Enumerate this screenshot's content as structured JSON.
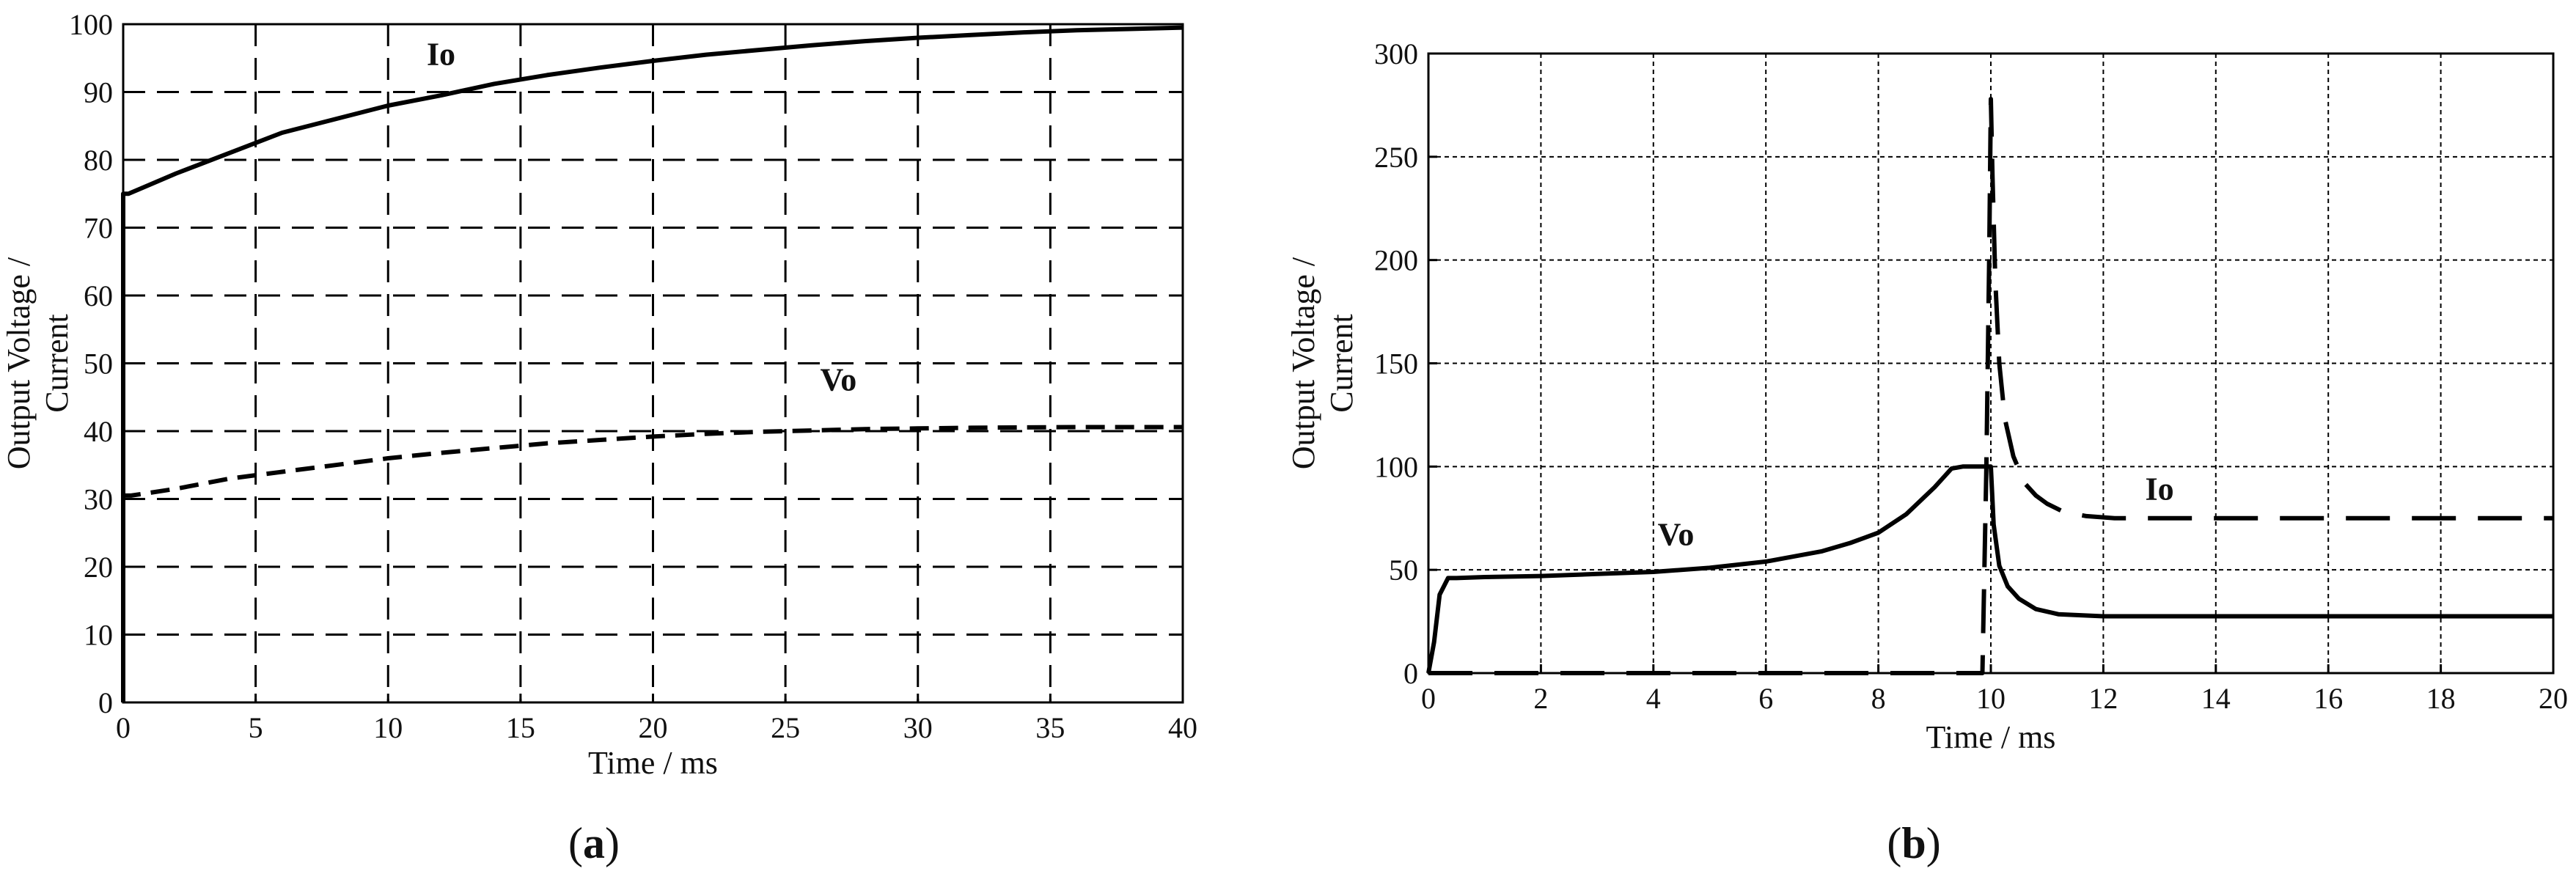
{
  "chart_data": [
    {
      "type": "line",
      "panel_label": "(a)",
      "xlabel": "Time / ms",
      "ylabel_lines": [
        "Output Voltage /",
        "Current"
      ],
      "xlim": [
        0,
        40
      ],
      "ylim": [
        0,
        100
      ],
      "xticks": [
        0,
        5,
        10,
        15,
        20,
        25,
        30,
        35,
        40
      ],
      "yticks": [
        0,
        10,
        20,
        30,
        40,
        50,
        60,
        70,
        80,
        90,
        100
      ],
      "grid": true,
      "grid_style": "dashed",
      "series": [
        {
          "name": "Io",
          "style": "solid",
          "label": {
            "text": "Io",
            "x": 12,
            "y": 94
          },
          "x": [
            0,
            0,
            0.2,
            2,
            4,
            6,
            8,
            10,
            12,
            14,
            16,
            18,
            20,
            22,
            24,
            26,
            28,
            30,
            32,
            34,
            36,
            38,
            40
          ],
          "y": [
            0,
            75,
            75,
            78,
            81,
            84,
            86,
            88,
            89.5,
            91.2,
            92.5,
            93.6,
            94.6,
            95.5,
            96.2,
            96.9,
            97.5,
            98,
            98.4,
            98.8,
            99.1,
            99.3,
            99.5
          ]
        },
        {
          "name": "Vo",
          "style": "dashed",
          "label": {
            "text": "Vo",
            "x": 27,
            "y": 46
          },
          "x": [
            0,
            0,
            0.3,
            2,
            4,
            6,
            8,
            10,
            12,
            14,
            16,
            18,
            20,
            22,
            24,
            26,
            28,
            30,
            32,
            34,
            36,
            38,
            40
          ],
          "y": [
            0,
            30.5,
            30.5,
            31.5,
            33,
            34,
            35,
            36,
            36.8,
            37.5,
            38.2,
            38.7,
            39.2,
            39.6,
            39.9,
            40.1,
            40.3,
            40.4,
            40.5,
            40.55,
            40.6,
            40.6,
            40.6
          ]
        }
      ]
    },
    {
      "type": "line",
      "panel_label": "(b)",
      "xlabel": "Time / ms",
      "ylabel_lines": [
        "Output Voltage /",
        "Current"
      ],
      "xlim": [
        0,
        20
      ],
      "ylim": [
        0,
        300
      ],
      "xticks": [
        0,
        2,
        4,
        6,
        8,
        10,
        12,
        14,
        16,
        18,
        20
      ],
      "yticks": [
        0,
        50,
        100,
        150,
        200,
        250,
        300
      ],
      "grid": true,
      "grid_style": "dotted",
      "series": [
        {
          "name": "Vo",
          "style": "solid",
          "label": {
            "text": "Vo",
            "x": 4.4,
            "y": 62
          },
          "x": [
            0,
            0.1,
            0.2,
            0.35,
            0.5,
            1,
            2,
            3,
            4,
            5,
            6,
            7,
            7.5,
            8,
            8.5,
            9,
            9.3,
            9.5,
            9.7,
            9.9,
            10,
            10.05,
            10.15,
            10.3,
            10.5,
            10.8,
            11.2,
            12,
            14,
            16,
            18,
            20
          ],
          "y": [
            0,
            15,
            38,
            46,
            46,
            46.5,
            47,
            48,
            49,
            51,
            54,
            59,
            63,
            68,
            77,
            90,
            99,
            100,
            100,
            100,
            100,
            72,
            52,
            42,
            36,
            31,
            28.5,
            27.5,
            27.5,
            27.5,
            27.5,
            27.5
          ]
        },
        {
          "name": "Io",
          "style": "dashed",
          "label": {
            "text": "Io",
            "x": 13,
            "y": 84
          },
          "x": [
            0,
            9.85,
            9.92,
            9.97,
            10.0,
            10.03,
            10.08,
            10.15,
            10.25,
            10.4,
            10.6,
            10.8,
            11.0,
            11.3,
            11.7,
            12.2,
            14,
            16,
            18,
            20
          ],
          "y": [
            0,
            0,
            100,
            200,
            278,
            240,
            190,
            150,
            123,
            105,
            92,
            86,
            82,
            78,
            76,
            75,
            75,
            75,
            75,
            75
          ]
        }
      ]
    }
  ]
}
